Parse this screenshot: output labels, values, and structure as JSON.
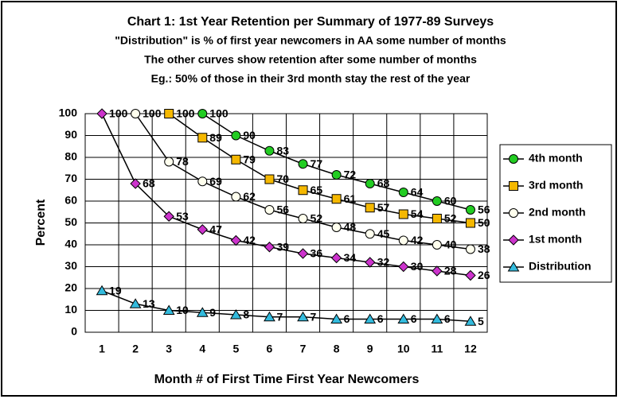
{
  "chart_data": {
    "type": "line",
    "title": "Chart 1: 1st Year Retention per Summary of 1977-89 Surveys",
    "subtitle": [
      "\"Distribution\" is % of first year newcomers in AA some number of months",
      "The other curves show retention after some number of months",
      "Eg.:  50% of those in their 3rd month stay the rest of the year"
    ],
    "x_label": "Month # of First Time First Year Newcomers",
    "y_label": "Percent",
    "categories": [
      "1",
      "2",
      "3",
      "4",
      "5",
      "6",
      "7",
      "8",
      "9",
      "10",
      "11",
      "12"
    ],
    "ylim": [
      0,
      100
    ],
    "yticks": [
      0,
      10,
      20,
      30,
      40,
      50,
      60,
      70,
      80,
      90,
      100
    ],
    "grid": true,
    "legend": "right",
    "series": [
      {
        "name": "4th month",
        "color": "#22cc22",
        "marker": "circle",
        "values": [
          null,
          null,
          null,
          100,
          90,
          83,
          77,
          72,
          68,
          64,
          60,
          56
        ]
      },
      {
        "name": "3rd month",
        "color": "#f5b800",
        "marker": "square",
        "values": [
          null,
          null,
          100,
          89,
          79,
          70,
          65,
          61,
          57,
          54,
          52,
          50
        ]
      },
      {
        "name": "2nd month",
        "color": "#ffffee",
        "marker": "circle",
        "values": [
          null,
          100,
          78,
          69,
          62,
          56,
          52,
          48,
          45,
          42,
          40,
          38
        ]
      },
      {
        "name": "1st month",
        "color": "#cc33cc",
        "marker": "diamond",
        "values": [
          100,
          68,
          53,
          47,
          42,
          39,
          36,
          34,
          32,
          30,
          28,
          26
        ]
      },
      {
        "name": "Distribution",
        "color": "#33bbdd",
        "marker": "triangle",
        "values": [
          19,
          13,
          10,
          9,
          8,
          7,
          7,
          6,
          6,
          6,
          6,
          5
        ]
      }
    ]
  }
}
